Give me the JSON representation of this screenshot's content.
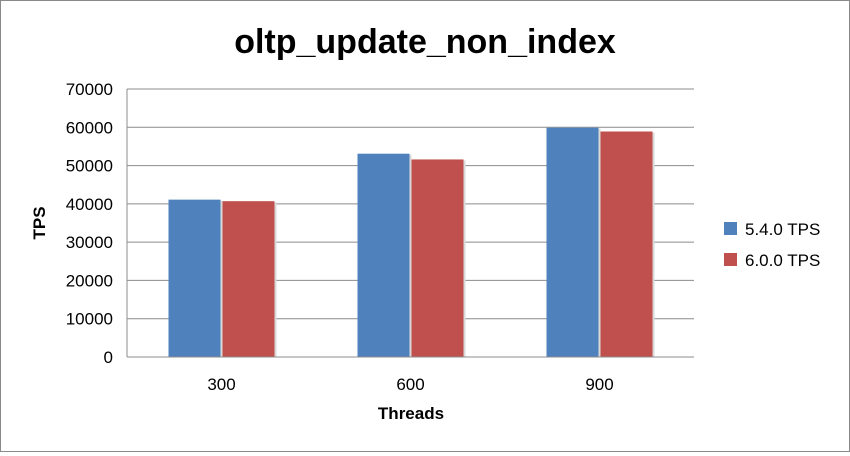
{
  "chart_data": {
    "type": "bar",
    "title": "oltp_update_non_index",
    "xlabel": "Threads",
    "ylabel": "TPS",
    "categories": [
      "300",
      "600",
      "900"
    ],
    "series": [
      {
        "name": "5.4.0 TPS",
        "color": "#4f81bd",
        "values": [
          41100,
          53100,
          59900
        ]
      },
      {
        "name": "6.0.0 TPS",
        "color": "#c0504d",
        "values": [
          40700,
          51600,
          58900
        ]
      }
    ],
    "ylim": [
      0,
      70000
    ],
    "yticks": [
      "0",
      "10000",
      "20000",
      "30000",
      "40000",
      "50000",
      "60000",
      "70000"
    ],
    "grid": true,
    "legend": "right"
  }
}
